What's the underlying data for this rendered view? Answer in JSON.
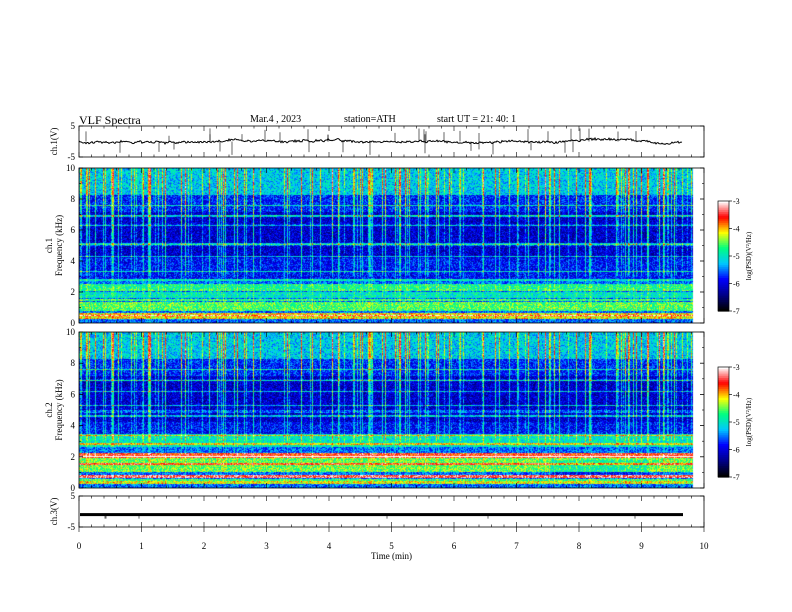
{
  "header": {
    "title": "VLF  Spectra",
    "date": "Mar.4  , 2023",
    "station": "station=ATH",
    "start": "start  UT  =    21: 40: 1"
  },
  "chart_data": [
    {
      "type": "line",
      "name": "ch1-waveform",
      "ylabel": "ch.1(V)",
      "ylim": [
        -5,
        5
      ],
      "yticks": [
        5,
        -5
      ],
      "baseline": 0
    },
    {
      "type": "heatmap",
      "name": "ch1-spectrogram",
      "ylabel": "ch.1\nFrequency  (kHz)",
      "ylim": [
        0,
        10
      ],
      "yticks": [
        0,
        2,
        4,
        6,
        8,
        10
      ],
      "colorbar": {
        "label": "log(PSD)(V²/Hz)",
        "ticks": [
          -3,
          -4,
          -5,
          -6,
          -7
        ],
        "range": [
          -7,
          -3
        ],
        "colors": [
          "#000000",
          "#00008b",
          "#0000ff",
          "#00c8ff",
          "#00ff80",
          "#ffff00",
          "#ff0000",
          "#ffffff"
        ]
      }
    },
    {
      "type": "heatmap",
      "name": "ch2-spectrogram",
      "ylabel": "ch.2\nFrequency  (kHz)",
      "ylim": [
        0,
        10
      ],
      "yticks": [
        0,
        2,
        4,
        6,
        8,
        10
      ],
      "colorbar": {
        "label": "log(PSD)(V²/Hz)",
        "ticks": [
          -3,
          -4,
          -5,
          -6,
          -7
        ],
        "range": [
          -7,
          -3
        ],
        "colors": [
          "#000000",
          "#00008b",
          "#0000ff",
          "#00c8ff",
          "#00ff80",
          "#ffff00",
          "#ff0000",
          "#ffffff"
        ]
      }
    },
    {
      "type": "line",
      "name": "ch3-waveform",
      "ylabel": "ch.3(V)",
      "ylim": [
        -5,
        5
      ],
      "yticks": [
        5,
        -5
      ],
      "baseline": -1
    }
  ],
  "x_axis": {
    "label": "Time  (min)",
    "xlim": [
      0,
      10
    ],
    "ticks": [
      0,
      1,
      2,
      3,
      4,
      5,
      6,
      7,
      8,
      9,
      10
    ],
    "data_end": 9.8
  }
}
